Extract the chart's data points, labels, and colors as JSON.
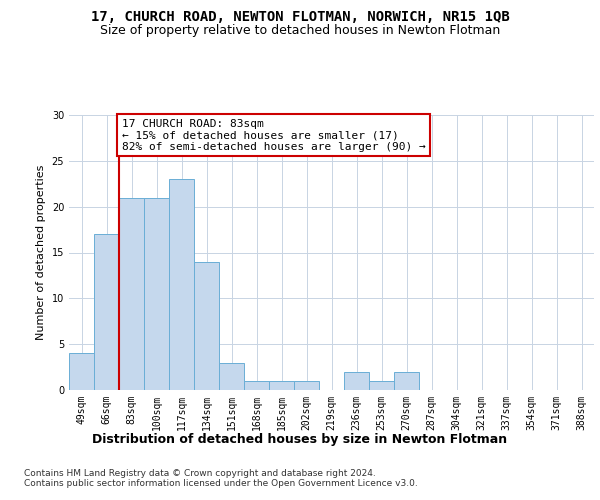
{
  "title": "17, CHURCH ROAD, NEWTON FLOTMAN, NORWICH, NR15 1QB",
  "subtitle": "Size of property relative to detached houses in Newton Flotman",
  "xlabel": "Distribution of detached houses by size in Newton Flotman",
  "ylabel": "Number of detached properties",
  "categories": [
    "49sqm",
    "66sqm",
    "83sqm",
    "100sqm",
    "117sqm",
    "134sqm",
    "151sqm",
    "168sqm",
    "185sqm",
    "202sqm",
    "219sqm",
    "236sqm",
    "253sqm",
    "270sqm",
    "287sqm",
    "304sqm",
    "321sqm",
    "337sqm",
    "354sqm",
    "371sqm",
    "388sqm"
  ],
  "values": [
    4,
    17,
    21,
    21,
    23,
    14,
    3,
    1,
    1,
    1,
    0,
    2,
    1,
    2,
    0,
    0,
    0,
    0,
    0,
    0,
    0
  ],
  "bar_color": "#c5d8ed",
  "bar_edge_color": "#6aaed6",
  "highlight_line_index": 2,
  "highlight_line_color": "#cc0000",
  "annotation_text": "17 CHURCH ROAD: 83sqm\n← 15% of detached houses are smaller (17)\n82% of semi-detached houses are larger (90) →",
  "annotation_box_color": "#ffffff",
  "annotation_box_edge_color": "#cc0000",
  "ylim": [
    0,
    30
  ],
  "yticks": [
    0,
    5,
    10,
    15,
    20,
    25,
    30
  ],
  "footer": "Contains HM Land Registry data © Crown copyright and database right 2024.\nContains public sector information licensed under the Open Government Licence v3.0.",
  "background_color": "#ffffff",
  "grid_color": "#c8d4e3",
  "title_fontsize": 10,
  "subtitle_fontsize": 9,
  "xlabel_fontsize": 9,
  "ylabel_fontsize": 8,
  "tick_fontsize": 7,
  "annotation_fontsize": 8,
  "footer_fontsize": 6.5
}
